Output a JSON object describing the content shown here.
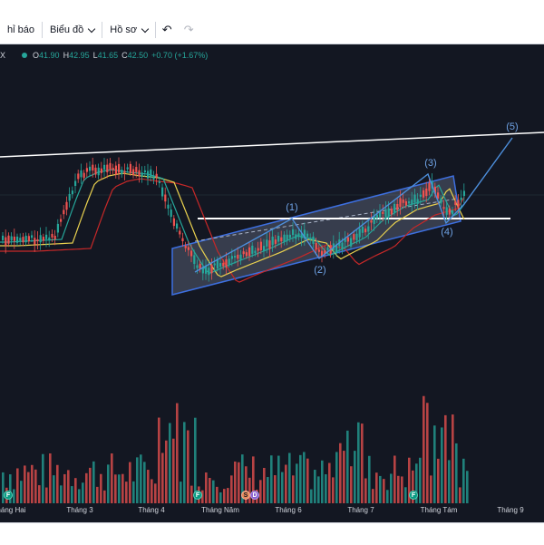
{
  "toolbar": {
    "indicators_label": "hỉ báo",
    "chart_type_label": "Biểu đồ",
    "profile_label": "Hồ sơ",
    "undo_icon": "undo-icon",
    "redo_icon": "redo-icon"
  },
  "legend": {
    "symbol_tail": "X",
    "open_key": "O",
    "open": "41.90",
    "high_key": "H",
    "high": "42.95",
    "low_key": "L",
    "low": "41.65",
    "close_key": "C",
    "close": "42.50",
    "change": "+0.70 (+1.67%)"
  },
  "waves": {
    "w1": "(1)",
    "w2": "(2)",
    "w3": "(3)",
    "w4": "(4)",
    "w5": "(5)"
  },
  "time_axis": [
    "Tháng Hai",
    "Tháng 3",
    "Tháng 4",
    "Tháng Năm",
    "Tháng 6",
    "Tháng 7",
    "Tháng Tám",
    "Tháng 9"
  ],
  "events": {
    "f": "F",
    "s": "S",
    "d": "D"
  },
  "colors": {
    "background": "#131722",
    "up": "#26a69a",
    "down": "#ef5350",
    "ma_fast": "#26a69a",
    "ma_mid": "#e9d14f",
    "ma_slow": "#c62828",
    "channel": "#3d6fe0",
    "trendline": "#ffffff",
    "wave_path": "#4d8fdc"
  },
  "chart_data": {
    "type": "candlestick",
    "title": "",
    "xlabel": "",
    "ylabel": "",
    "ohlc_current": {
      "open": 41.9,
      "high": 42.95,
      "low": 41.65,
      "close": 42.5
    },
    "change": 0.7,
    "change_pct": 1.67,
    "x_ticks": [
      "Tháng Hai",
      "Tháng 3",
      "Tháng 4",
      "Tháng Năm",
      "Tháng 6",
      "Tháng 7",
      "Tháng Tám",
      "Tháng 9"
    ],
    "wave_labels": [
      "(1)",
      "(2)",
      "(3)",
      "(4)",
      "(5)"
    ],
    "grid": false,
    "has_volume": true
  }
}
